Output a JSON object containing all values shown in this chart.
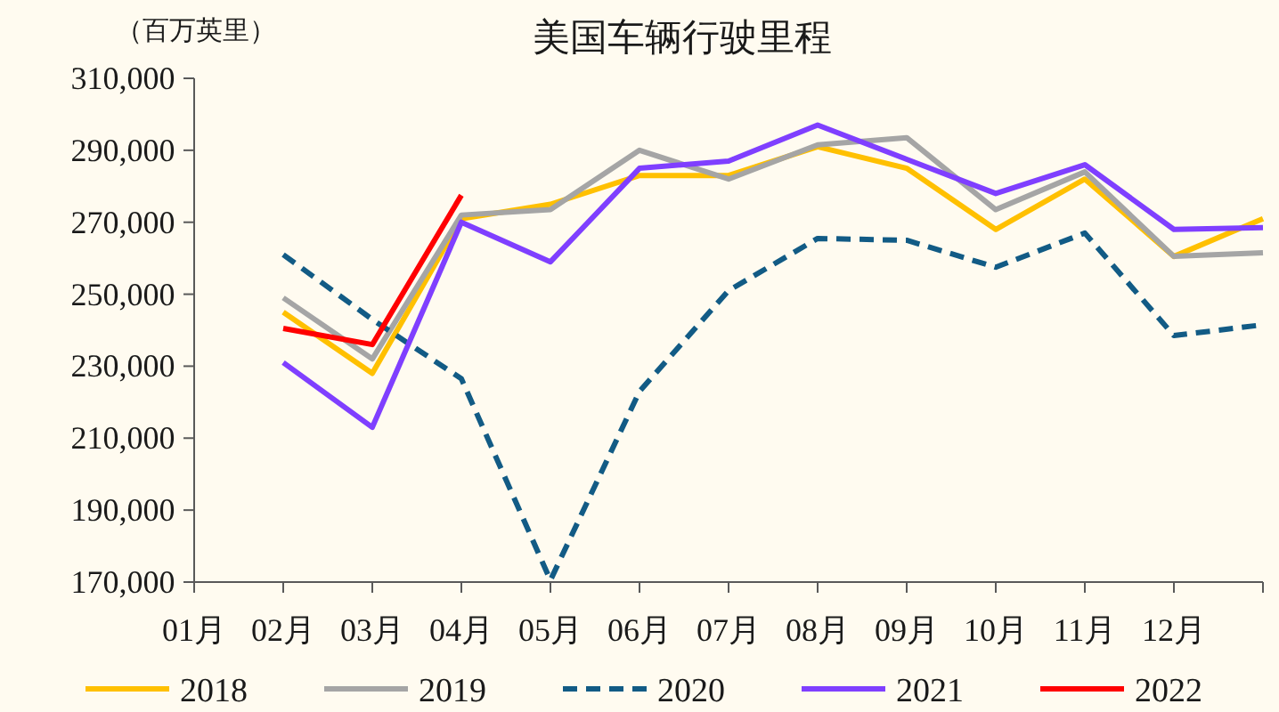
{
  "chart_data": {
    "type": "line",
    "title": "美国车辆行驶里程",
    "ylabel": "（百万英里）",
    "categories": [
      "01月",
      "02月",
      "03月",
      "04月",
      "05月",
      "06月",
      "07月",
      "08月",
      "09月",
      "10月",
      "11月",
      "12月",
      null
    ],
    "series": [
      {
        "name": "2018",
        "color": "#ffc000",
        "values": [
          null,
          245000,
          228000,
          271000,
          275000,
          283000,
          283000,
          291000,
          285000,
          268000,
          282000,
          260500,
          271000
        ]
      },
      {
        "name": "2019",
        "color": "#a5a5a5",
        "values": [
          null,
          249000,
          232000,
          272000,
          273500,
          290000,
          282000,
          291500,
          293500,
          273500,
          284000,
          260500,
          261500
        ]
      },
      {
        "name": "2020",
        "color": "#125b85",
        "line_style": "dashed",
        "values": [
          null,
          261000,
          243000,
          226500,
          170500,
          223000,
          251000,
          265500,
          265000,
          257500,
          267000,
          238500,
          241500
        ]
      },
      {
        "name": "2021",
        "color": "#7f3fff",
        "values": [
          null,
          231000,
          213000,
          270000,
          259000,
          285000,
          287000,
          297000,
          287500,
          278000,
          286000,
          268000,
          268500
        ]
      },
      {
        "name": "2022",
        "color": "#ff0000",
        "values": [
          null,
          240500,
          236000,
          277500,
          null,
          null,
          null,
          null,
          null,
          null,
          null,
          null,
          null
        ]
      }
    ],
    "ylim": [
      170000,
      310000
    ],
    "yticks": [
      {
        "value": 170000,
        "label": "170,000"
      },
      {
        "value": 190000,
        "label": "190,000"
      },
      {
        "value": 210000,
        "label": "210,000"
      },
      {
        "value": 230000,
        "label": "230,000"
      },
      {
        "value": 250000,
        "label": "250,000"
      },
      {
        "value": 270000,
        "label": "270,000"
      },
      {
        "value": 290000,
        "label": "290,000"
      },
      {
        "value": 310000,
        "label": "310,000"
      }
    ],
    "grid": false,
    "legend": "bottom"
  }
}
